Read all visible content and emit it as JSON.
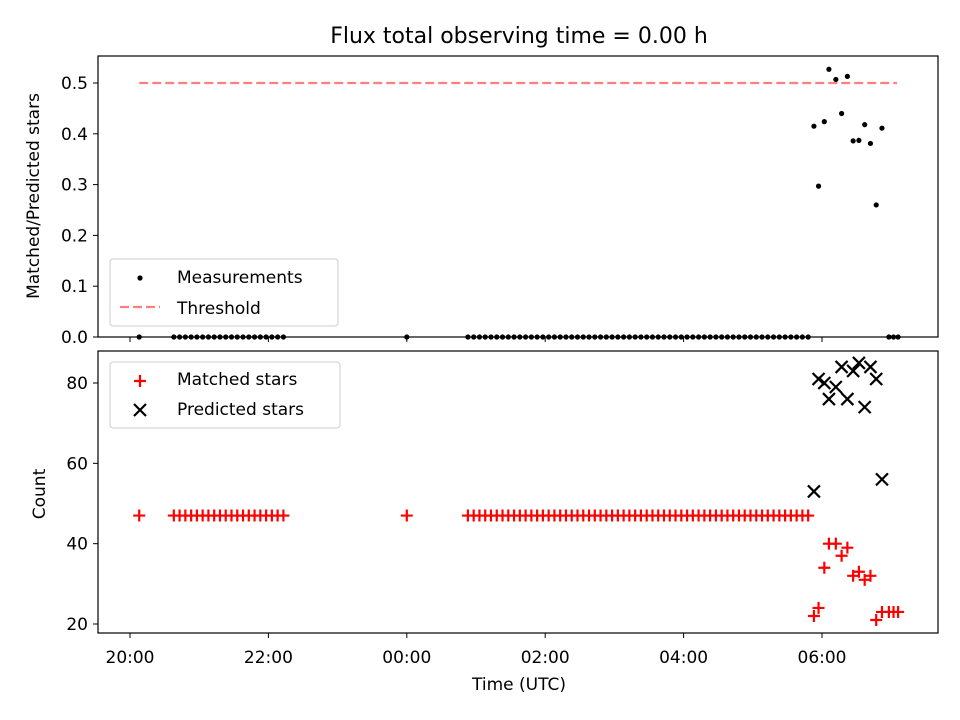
{
  "title": "Flux total observing time = 0.00 h",
  "chart_data": [
    {
      "type": "scatter",
      "ylabel": "Matched/Predicted stars",
      "ylim": [
        0,
        0.55
      ],
      "yticks": [
        0.0,
        0.1,
        0.2,
        0.3,
        0.4,
        0.5
      ],
      "ytick_labels": [
        "0.0",
        "0.1",
        "0.2",
        "0.3",
        "0.4",
        "0.5"
      ],
      "legend": {
        "placement": "lower-left",
        "entries": [
          "Measurements",
          "Threshold"
        ]
      },
      "threshold": {
        "name": "Threshold",
        "value": 0.5,
        "x": [
          "2024-01-01T20:08",
          "2024-01-02T07:05"
        ],
        "color": "#ff7f7f"
      },
      "series": [
        {
          "name": "Measurements",
          "color": "#000000",
          "low_times": [
            "20:08",
            "20:38-22:17 every 5 min",
            "00:00",
            "00:53-05:48 every 5 min",
            "06:58-07:06 every 4 min"
          ],
          "points": [
            {
              "x": "05:53",
              "y": 0.415
            },
            {
              "x": "05:57",
              "y": 0.297
            },
            {
              "x": "06:02",
              "y": 0.424
            },
            {
              "x": "06:06",
              "y": 0.527
            },
            {
              "x": "06:12",
              "y": 0.507
            },
            {
              "x": "06:17",
              "y": 0.44
            },
            {
              "x": "06:22",
              "y": 0.513
            },
            {
              "x": "06:27",
              "y": 0.386
            },
            {
              "x": "06:32",
              "y": 0.387
            },
            {
              "x": "06:37",
              "y": 0.418
            },
            {
              "x": "06:42",
              "y": 0.381
            },
            {
              "x": "06:47",
              "y": 0.26
            },
            {
              "x": "06:52",
              "y": 0.411
            }
          ]
        }
      ]
    },
    {
      "type": "scatter",
      "xlabel": "Time (UTC)",
      "ylabel": "Count",
      "ylim": [
        18,
        89
      ],
      "yticks": [
        20,
        40,
        60,
        80
      ],
      "ytick_labels": [
        "20",
        "40",
        "60",
        "80"
      ],
      "xtick_labels": [
        "20:00",
        "22:00",
        "00:00",
        "02:00",
        "04:00",
        "06:00"
      ],
      "legend": {
        "placement": "upper-left",
        "entries": [
          "Matched stars",
          "Predicted stars"
        ]
      },
      "series": [
        {
          "name": "Matched stars",
          "color": "#ff0000",
          "marker": "+",
          "flat_value": 47,
          "flat_times": [
            "20:08",
            "20:38-22:17 every 5 min",
            "00:00",
            "00:53-05:48 every 5 min"
          ],
          "points": [
            {
              "x": "05:53",
              "y": 22
            },
            {
              "x": "05:57",
              "y": 24
            },
            {
              "x": "06:02",
              "y": 34
            },
            {
              "x": "06:06",
              "y": 40
            },
            {
              "x": "06:12",
              "y": 40
            },
            {
              "x": "06:17",
              "y": 37
            },
            {
              "x": "06:22",
              "y": 39
            },
            {
              "x": "06:27",
              "y": 32
            },
            {
              "x": "06:32",
              "y": 33
            },
            {
              "x": "06:37",
              "y": 31
            },
            {
              "x": "06:42",
              "y": 32
            },
            {
              "x": "06:47",
              "y": 21
            },
            {
              "x": "06:52",
              "y": 23
            },
            {
              "x": "06:58",
              "y": 23
            },
            {
              "x": "07:02",
              "y": 23
            },
            {
              "x": "07:06",
              "y": 23
            }
          ]
        },
        {
          "name": "Predicted stars",
          "color": "#000000",
          "marker": "x",
          "points": [
            {
              "x": "05:53",
              "y": 53
            },
            {
              "x": "05:57",
              "y": 81
            },
            {
              "x": "06:02",
              "y": 80
            },
            {
              "x": "06:06",
              "y": 76
            },
            {
              "x": "06:12",
              "y": 79
            },
            {
              "x": "06:17",
              "y": 84
            },
            {
              "x": "06:22",
              "y": 76
            },
            {
              "x": "06:27",
              "y": 83
            },
            {
              "x": "06:32",
              "y": 85
            },
            {
              "x": "06:37",
              "y": 74
            },
            {
              "x": "06:42",
              "y": 84
            },
            {
              "x": "06:47",
              "y": 81
            },
            {
              "x": "06:52",
              "y": 56
            }
          ]
        }
      ]
    }
  ]
}
